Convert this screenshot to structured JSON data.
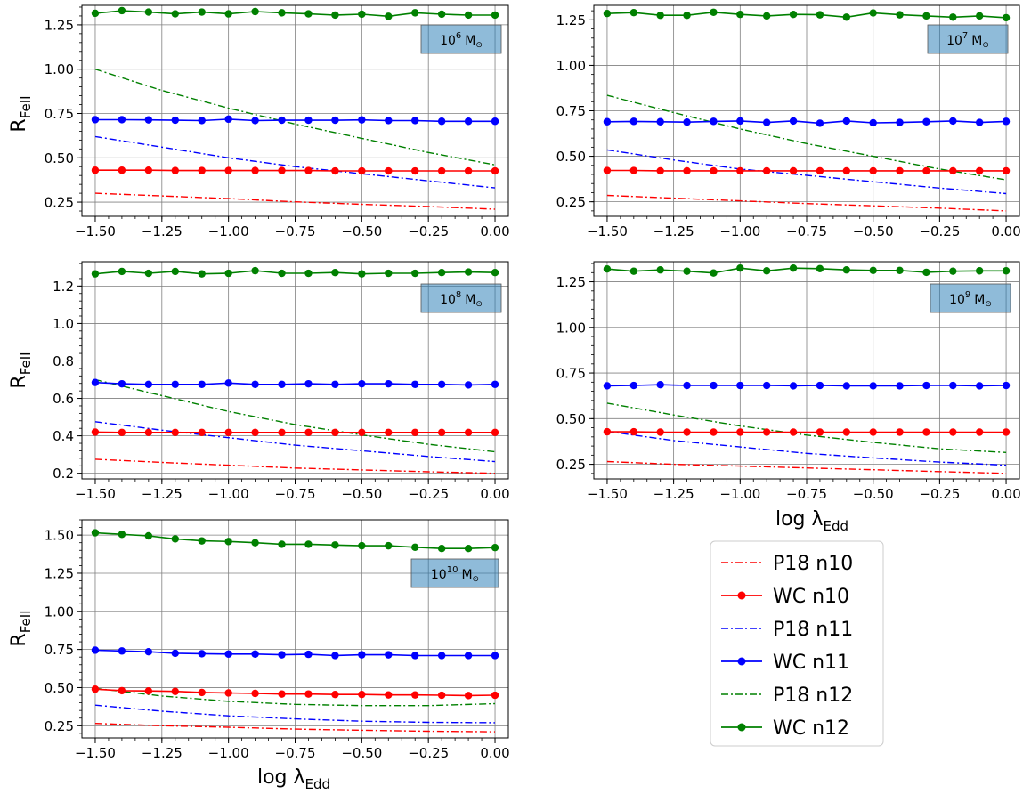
{
  "chart_data": {
    "type": "line",
    "x_ticks": [
      "−1.50",
      "−1.25",
      "−1.00",
      "−0.75",
      "−0.50",
      "−0.25",
      "0.00"
    ],
    "xlabel_text": "log λ",
    "xlabel_sub": "Edd",
    "ylabel_text": "R",
    "ylabel_sub": "FeII",
    "legend": [
      {
        "label": "P18 n10",
        "color": "#ff0000",
        "style": "dashdot"
      },
      {
        "label": "WC n10",
        "color": "#ff0000",
        "style": "solid-marker"
      },
      {
        "label": "P18 n11",
        "color": "#0000ff",
        "style": "dashdot"
      },
      {
        "label": "WC n11",
        "color": "#0000ff",
        "style": "solid-marker"
      },
      {
        "label": "P18 n12",
        "color": "#008000",
        "style": "dashdot"
      },
      {
        "label": "WC n12",
        "color": "#008000",
        "style": "solid-marker"
      }
    ],
    "wc_x": [
      -1.5,
      -1.4,
      -1.3,
      -1.2,
      -1.1,
      -1.0,
      -0.9,
      -0.8,
      -0.7,
      -0.6,
      -0.5,
      -0.4,
      -0.3,
      -0.2,
      -0.1,
      0.0
    ],
    "p18_x": [
      -1.5,
      -1.25,
      -1.0,
      -0.75,
      -0.5,
      -0.25,
      0.0
    ],
    "panels": [
      {
        "annot_base": "10",
        "annot_exp": "6",
        "annot_unit": "M",
        "xlim": [
          -1.55,
          0.05
        ],
        "ylim": [
          0.17,
          1.36
        ],
        "y_ticks": [
          0.25,
          0.5,
          0.75,
          1.0,
          1.25
        ],
        "y_labels": [
          "0.25",
          "0.50",
          "0.75",
          "1.00",
          "1.25"
        ],
        "wc_n10": [
          0.43,
          0.43,
          0.43,
          0.428,
          0.428,
          0.428,
          0.428,
          0.428,
          0.428,
          0.426,
          0.426,
          0.426,
          0.426,
          0.426,
          0.426,
          0.426
        ],
        "wc_n11": [
          0.715,
          0.715,
          0.714,
          0.712,
          0.71,
          0.718,
          0.71,
          0.712,
          0.712,
          0.712,
          0.714,
          0.71,
          0.71,
          0.706,
          0.706,
          0.706
        ],
        "wc_n12": [
          1.315,
          1.33,
          1.322,
          1.312,
          1.322,
          1.312,
          1.325,
          1.318,
          1.312,
          1.305,
          1.31,
          1.298,
          1.318,
          1.31,
          1.305,
          1.305
        ],
        "p18_n10": [
          0.3,
          0.285,
          0.27,
          0.252,
          0.238,
          0.225,
          0.21
        ],
        "p18_n11": [
          0.62,
          0.56,
          0.5,
          0.45,
          0.41,
          0.37,
          0.33
        ],
        "p18_n12": [
          1.0,
          0.88,
          0.78,
          0.69,
          0.61,
          0.53,
          0.46
        ]
      },
      {
        "annot_base": "10",
        "annot_exp": "7",
        "annot_unit": "M",
        "xlim": [
          -1.55,
          0.05
        ],
        "ylim": [
          0.17,
          1.33
        ],
        "y_ticks": [
          0.25,
          0.5,
          0.75,
          1.0,
          1.25
        ],
        "y_labels": [
          "0.25",
          "0.50",
          "0.75",
          "1.00",
          "1.25"
        ],
        "wc_n10": [
          0.422,
          0.422,
          0.42,
          0.42,
          0.42,
          0.42,
          0.42,
          0.42,
          0.42,
          0.42,
          0.42,
          0.42,
          0.42,
          0.42,
          0.42,
          0.42
        ],
        "wc_n11": [
          0.69,
          0.692,
          0.69,
          0.688,
          0.692,
          0.694,
          0.686,
          0.694,
          0.682,
          0.694,
          0.684,
          0.686,
          0.69,
          0.694,
          0.686,
          0.692
        ],
        "wc_n12": [
          1.285,
          1.29,
          1.275,
          1.275,
          1.292,
          1.28,
          1.272,
          1.28,
          1.278,
          1.265,
          1.288,
          1.278,
          1.272,
          1.265,
          1.272,
          1.262
        ],
        "p18_n10": [
          0.285,
          0.27,
          0.255,
          0.24,
          0.228,
          0.215,
          0.2
        ],
        "p18_n11": [
          0.535,
          0.48,
          0.43,
          0.395,
          0.36,
          0.325,
          0.295
        ],
        "p18_n12": [
          0.835,
          0.74,
          0.65,
          0.57,
          0.5,
          0.43,
          0.37
        ]
      },
      {
        "annot_base": "10",
        "annot_exp": "8",
        "annot_unit": "M",
        "xlim": [
          -1.55,
          0.05
        ],
        "ylim": [
          0.17,
          1.33
        ],
        "y_ticks": [
          0.2,
          0.4,
          0.6,
          0.8,
          1.0,
          1.2
        ],
        "y_labels": [
          "0.2",
          "0.4",
          "0.6",
          "0.8",
          "1.0",
          "1.2"
        ],
        "wc_n10": [
          0.42,
          0.418,
          0.418,
          0.418,
          0.418,
          0.418,
          0.418,
          0.418,
          0.418,
          0.418,
          0.418,
          0.418,
          0.418,
          0.418,
          0.418,
          0.418
        ],
        "wc_n11": [
          0.685,
          0.678,
          0.675,
          0.675,
          0.675,
          0.682,
          0.675,
          0.675,
          0.678,
          0.675,
          0.678,
          0.678,
          0.675,
          0.675,
          0.672,
          0.675
        ],
        "wc_n12": [
          1.265,
          1.278,
          1.268,
          1.278,
          1.265,
          1.268,
          1.282,
          1.268,
          1.268,
          1.272,
          1.265,
          1.268,
          1.268,
          1.272,
          1.275,
          1.272
        ],
        "p18_n10": [
          0.275,
          0.258,
          0.243,
          0.228,
          0.218,
          0.208,
          0.2
        ],
        "p18_n11": [
          0.475,
          0.43,
          0.39,
          0.35,
          0.32,
          0.29,
          0.262
        ],
        "p18_n12": [
          0.7,
          0.615,
          0.53,
          0.46,
          0.405,
          0.355,
          0.315
        ]
      },
      {
        "annot_base": "10",
        "annot_exp": "9",
        "annot_unit": "M",
        "xlim": [
          -1.55,
          0.05
        ],
        "ylim": [
          0.17,
          1.36
        ],
        "y_ticks": [
          0.25,
          0.5,
          0.75,
          1.0,
          1.25
        ],
        "y_labels": [
          "0.25",
          "0.50",
          "0.75",
          "1.00",
          "1.25"
        ],
        "wc_n10": [
          0.428,
          0.428,
          0.426,
          0.426,
          0.426,
          0.426,
          0.426,
          0.426,
          0.426,
          0.426,
          0.426,
          0.426,
          0.426,
          0.426,
          0.426,
          0.426
        ],
        "wc_n11": [
          0.68,
          0.682,
          0.686,
          0.682,
          0.682,
          0.682,
          0.682,
          0.68,
          0.682,
          0.68,
          0.68,
          0.68,
          0.682,
          0.682,
          0.68,
          0.682
        ],
        "wc_n12": [
          1.32,
          1.308,
          1.315,
          1.308,
          1.298,
          1.325,
          1.31,
          1.325,
          1.322,
          1.315,
          1.312,
          1.312,
          1.302,
          1.308,
          1.31,
          1.31
        ],
        "p18_n10": [
          0.265,
          0.25,
          0.24,
          0.23,
          0.22,
          0.21,
          0.2
        ],
        "p18_n11": [
          0.43,
          0.38,
          0.345,
          0.31,
          0.285,
          0.262,
          0.245
        ],
        "p18_n12": [
          0.585,
          0.52,
          0.46,
          0.41,
          0.37,
          0.335,
          0.315
        ]
      },
      {
        "annot_base": "10",
        "annot_exp": "10",
        "annot_unit": "M",
        "xlim": [
          -1.55,
          0.05
        ],
        "ylim": [
          0.17,
          1.6
        ],
        "y_ticks": [
          0.25,
          0.5,
          0.75,
          1.0,
          1.25,
          1.5
        ],
        "y_labels": [
          "0.25",
          "0.50",
          "0.75",
          "1.00",
          "1.25",
          "1.50"
        ],
        "wc_n10": [
          0.49,
          0.48,
          0.478,
          0.475,
          0.468,
          0.465,
          0.462,
          0.458,
          0.458,
          0.455,
          0.455,
          0.452,
          0.452,
          0.45,
          0.448,
          0.45
        ],
        "wc_n11": [
          0.745,
          0.74,
          0.735,
          0.725,
          0.722,
          0.72,
          0.72,
          0.715,
          0.718,
          0.71,
          0.715,
          0.715,
          0.71,
          0.71,
          0.71,
          0.71
        ],
        "wc_n12": [
          1.515,
          1.505,
          1.495,
          1.475,
          1.462,
          1.458,
          1.45,
          1.44,
          1.44,
          1.435,
          1.43,
          1.43,
          1.42,
          1.412,
          1.412,
          1.418
        ],
        "p18_n10": [
          0.265,
          0.25,
          0.24,
          0.228,
          0.22,
          0.214,
          0.21
        ],
        "p18_n11": [
          0.385,
          0.345,
          0.315,
          0.295,
          0.28,
          0.272,
          0.27
        ],
        "p18_n12": [
          0.495,
          0.445,
          0.41,
          0.39,
          0.382,
          0.382,
          0.395
        ]
      }
    ]
  }
}
